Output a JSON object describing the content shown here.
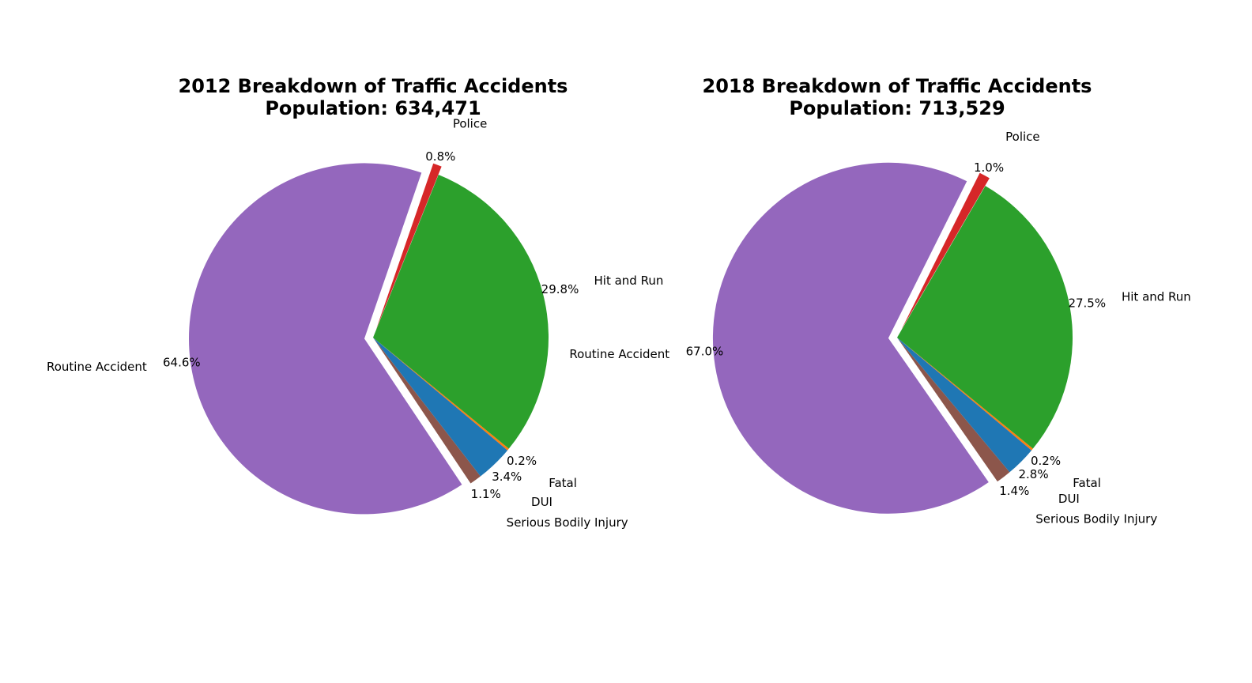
{
  "chart_data": [
    {
      "type": "pie",
      "title_line1": "2012 Breakdown of Traffic Accidents",
      "title_line2": "Population: 634,471",
      "slices": [
        {
          "label": "Fatal",
          "pct_label": "0.2%",
          "value": 0.2,
          "color": "#ff7f0e",
          "explode": false
        },
        {
          "label": "Hit and Run",
          "pct_label": "29.8%",
          "value": 29.8,
          "color": "#2ca02c",
          "explode": false
        },
        {
          "label": "Police",
          "pct_label": "0.8%",
          "value": 0.8,
          "color": "#d62728",
          "explode": true
        },
        {
          "label": "Routine Accident",
          "pct_label": "64.6%",
          "value": 64.6,
          "color": "#9467bd",
          "explode": true
        },
        {
          "label": "Serious Bodily Injury",
          "pct_label": "1.1%",
          "value": 1.1,
          "color": "#8c564b",
          "explode": false
        },
        {
          "label": "DUI",
          "pct_label": "3.4%",
          "value": 3.4,
          "color": "#1f77b4",
          "explode": false
        }
      ]
    },
    {
      "type": "pie",
      "title_line1": "2018 Breakdown of Traffic Accidents",
      "title_line2": "Population: 713,529",
      "slices": [
        {
          "label": "Fatal",
          "pct_label": "0.2%",
          "value": 0.2,
          "color": "#ff7f0e",
          "explode": false
        },
        {
          "label": "Hit and Run",
          "pct_label": "27.5%",
          "value": 27.5,
          "color": "#2ca02c",
          "explode": false
        },
        {
          "label": "Police",
          "pct_label": "1.0%",
          "value": 1.0,
          "color": "#d62728",
          "explode": true
        },
        {
          "label": "Routine Accident",
          "pct_label": "67.0%",
          "value": 67.0,
          "color": "#9467bd",
          "explode": true
        },
        {
          "label": "Serious Bodily Injury",
          "pct_label": "1.4%",
          "value": 1.4,
          "color": "#8c564b",
          "explode": false
        },
        {
          "label": "DUI",
          "pct_label": "2.8%",
          "value": 2.8,
          "color": "#1f77b4",
          "explode": false
        }
      ]
    }
  ]
}
